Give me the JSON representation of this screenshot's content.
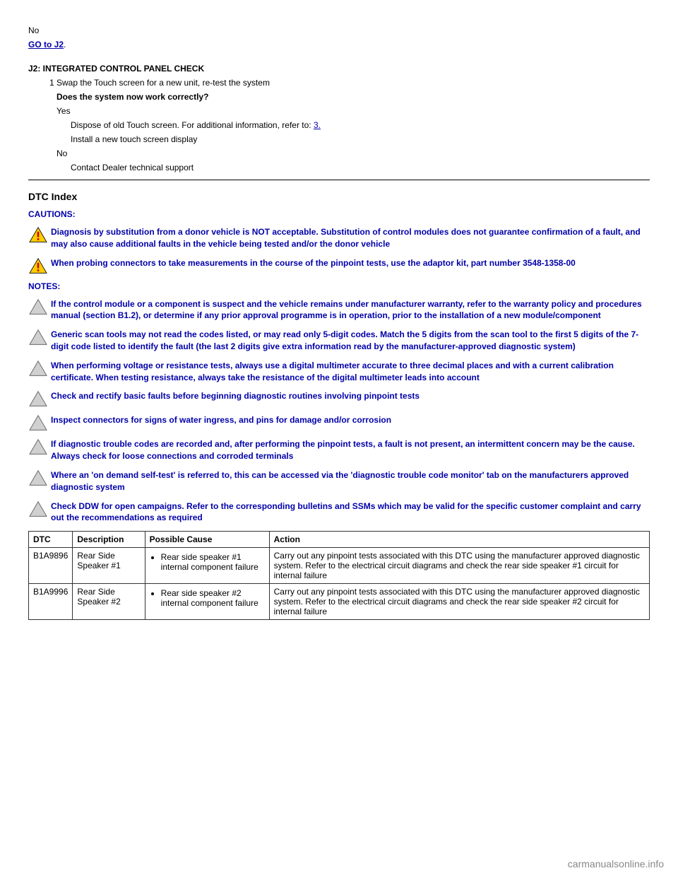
{
  "top": {
    "no_line": "No",
    "goto": "GO to J2",
    "goto_after": ".",
    "step_heading": "J2: INTEGRATED CONTROL PANEL CHECK",
    "step_line1": "1  Swap the Touch screen for a new unit, re-test the system",
    "step_q": "Does the system now work correctly?",
    "yes_line": "Yes",
    "yes_body_pre": "Dispose of old Touch screen. For additional information, refer to: ",
    "yes_link": "3.",
    "yes_body_post": "Install a new touch screen display",
    "no2_line": "No",
    "no2_body": "Contact Dealer technical support"
  },
  "dtc_section": {
    "title": "DTC Index",
    "cautions_label": "CAUTIONS:",
    "notes_label": "NOTES:",
    "caution_items": [
      "Diagnosis by substitution from a donor vehicle is NOT acceptable. Substitution of control modules does not guarantee confirmation of a fault, and may also cause additional faults in the vehicle being tested and/or the donor vehicle",
      "When probing connectors to take measurements in the course of the pinpoint tests, use the adaptor kit, part number 3548-1358-00"
    ],
    "note_items": [
      "If the control module or a component is suspect and the vehicle remains under manufacturer warranty, refer to the warranty policy and procedures manual (section B1.2), or determine if any prior approval programme is in operation, prior to the installation of a new module/component",
      "Generic scan tools may not read the codes listed, or may read only 5-digit codes. Match the 5 digits from the scan tool to the first 5 digits of the 7-digit code listed to identify the fault (the last 2 digits give extra information read by the manufacturer-approved diagnostic system)",
      "When performing voltage or resistance tests, always use a digital multimeter accurate to three decimal places and with a current calibration certificate. When testing resistance, always take the resistance of the digital multimeter leads into account",
      "Check and rectify basic faults before beginning diagnostic routines involving pinpoint tests",
      "Inspect connectors for signs of water ingress, and pins for damage and/or corrosion",
      "If diagnostic trouble codes are recorded and, after performing the pinpoint tests, a fault is not present, an intermittent concern may be the cause. Always check for loose connections and corroded terminals",
      "Where an 'on demand self-test' is referred to, this can be accessed via the 'diagnostic trouble code monitor' tab on the manufacturers approved diagnostic system",
      "Check DDW for open campaigns. Refer to the corresponding bulletins and SSMs which may be valid for the specific customer complaint and carry out the recommendations as required"
    ]
  },
  "table": {
    "headers": [
      "DTC",
      "Description",
      "Possible Cause",
      "Action"
    ],
    "rows": [
      {
        "dtc": "B1A9896",
        "desc": "Rear Side Speaker #1",
        "causes": [
          "Rear side speaker #1 internal component failure"
        ],
        "action": "Carry out any pinpoint tests associated with this DTC using the manufacturer approved diagnostic system. Refer to the electrical circuit diagrams and check the rear side speaker #1 circuit for internal failure"
      },
      {
        "dtc": "B1A9996",
        "desc": "Rear Side Speaker #2",
        "causes": [
          "Rear side speaker #2 internal component failure"
        ],
        "action": "Carry out any pinpoint tests associated with this DTC using the manufacturer approved diagnostic system. Refer to the electrical circuit diagrams and check the rear side speaker #2 circuit for internal failure"
      }
    ]
  },
  "watermark": "carmanualsonline.info",
  "colors": {
    "link": "#0000aa",
    "note_text": "#0000aa",
    "caution_fill": "#ffcc00",
    "caution_bang": "#cc0000",
    "note_fill": "#d0d0d0"
  }
}
